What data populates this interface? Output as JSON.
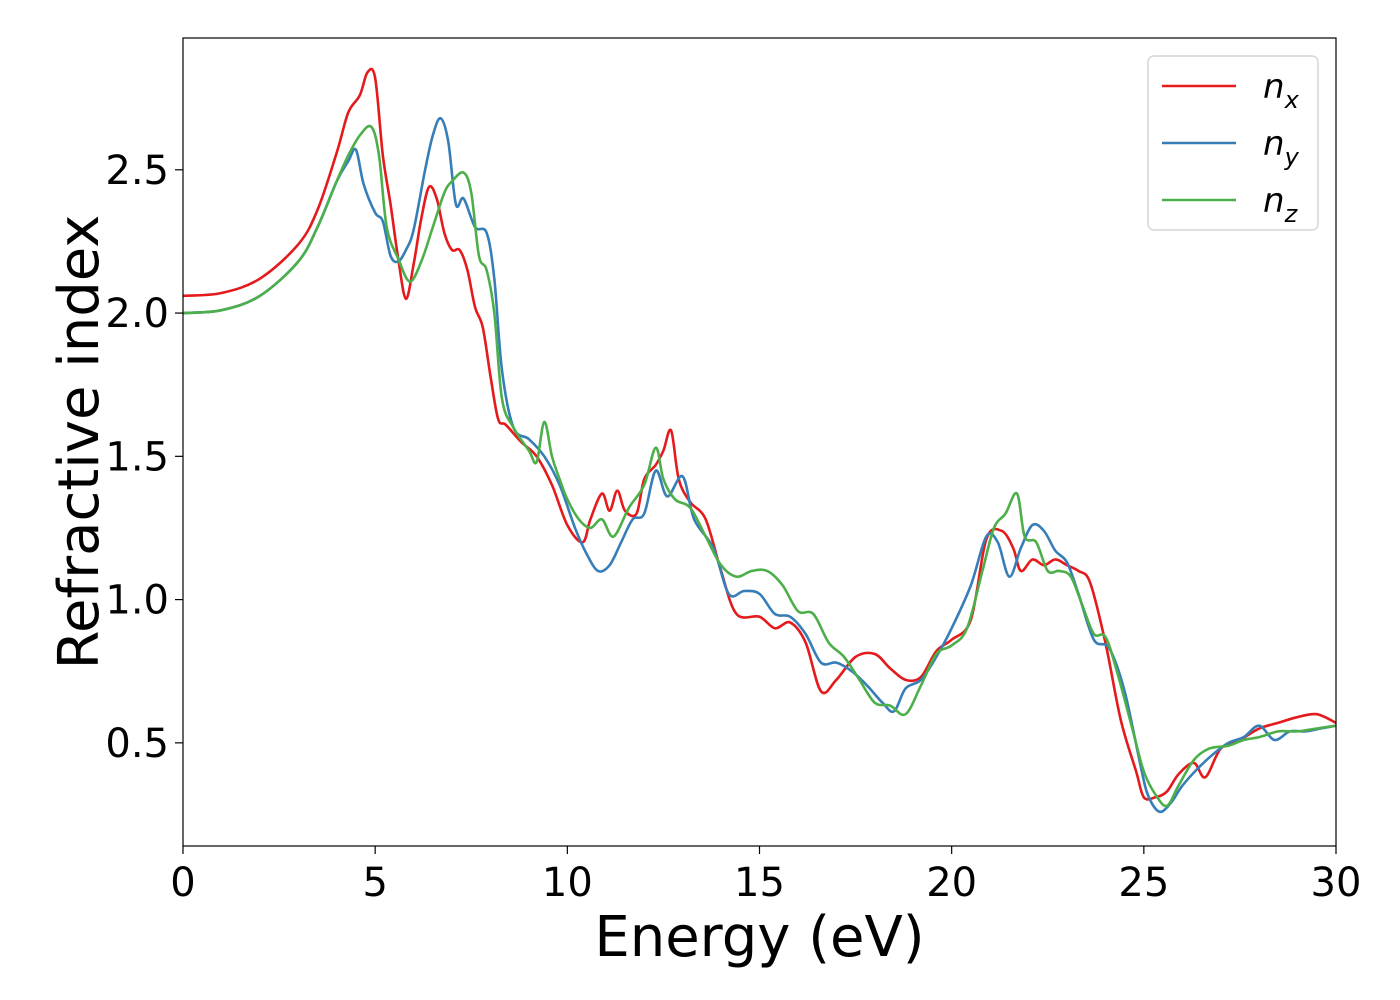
{
  "chart_data": {
    "type": "line",
    "title": "",
    "xlabel": "Energy (eV)",
    "ylabel": "Refractive index",
    "xlim": [
      0,
      30
    ],
    "ylim": [
      0.14,
      2.96
    ],
    "xticks": [
      0,
      5,
      10,
      15,
      20,
      25,
      30
    ],
    "yticks": [
      0.5,
      1.0,
      1.5,
      2.0,
      2.5
    ],
    "grid": false,
    "legend_position": "top-right",
    "series": [
      {
        "name": "n",
        "subscript": "x",
        "color": "#e41a1c",
        "x": [
          0,
          1,
          2,
          3,
          3.5,
          4,
          4.3,
          4.6,
          4.8,
          5.0,
          5.2,
          5.4,
          5.6,
          5.8,
          6.0,
          6.2,
          6.4,
          6.6,
          6.8,
          7.0,
          7.2,
          7.4,
          7.6,
          7.8,
          8.0,
          8.2,
          8.4,
          8.8,
          9.2,
          9.6,
          10.0,
          10.4,
          10.6,
          10.9,
          11.1,
          11.3,
          11.5,
          11.8,
          12.0,
          12.3,
          12.5,
          12.7,
          12.9,
          13.2,
          13.6,
          14.0,
          14.4,
          15.0,
          15.4,
          15.8,
          16.2,
          16.6,
          17.0,
          17.5,
          18.0,
          18.4,
          18.8,
          19.2,
          19.6,
          20.0,
          20.5,
          20.9,
          21.3,
          21.6,
          21.8,
          22.1,
          22.4,
          22.7,
          23.0,
          23.3,
          23.6,
          24.0,
          24.4,
          24.8,
          25.0,
          25.3,
          25.6,
          25.9,
          26.3,
          26.6,
          27.0,
          27.5,
          28.0,
          28.5,
          29.0,
          29.5,
          30.0
        ],
        "values": [
          2.06,
          2.07,
          2.12,
          2.24,
          2.36,
          2.56,
          2.7,
          2.76,
          2.84,
          2.82,
          2.55,
          2.38,
          2.19,
          2.05,
          2.17,
          2.33,
          2.44,
          2.4,
          2.28,
          2.22,
          2.22,
          2.15,
          2.02,
          1.95,
          1.78,
          1.63,
          1.61,
          1.55,
          1.5,
          1.4,
          1.26,
          1.2,
          1.28,
          1.37,
          1.31,
          1.38,
          1.31,
          1.3,
          1.42,
          1.47,
          1.52,
          1.59,
          1.42,
          1.34,
          1.28,
          1.1,
          0.95,
          0.94,
          0.9,
          0.92,
          0.85,
          0.68,
          0.72,
          0.8,
          0.81,
          0.76,
          0.72,
          0.73,
          0.82,
          0.86,
          0.93,
          1.21,
          1.24,
          1.18,
          1.1,
          1.14,
          1.12,
          1.14,
          1.12,
          1.1,
          1.06,
          0.85,
          0.58,
          0.4,
          0.31,
          0.31,
          0.33,
          0.39,
          0.43,
          0.38,
          0.48,
          0.51,
          0.55,
          0.57,
          0.59,
          0.6,
          0.57
        ]
      },
      {
        "name": "n",
        "subscript": "y",
        "color": "#377eb8",
        "x": [
          0,
          1,
          2,
          3,
          3.5,
          4,
          4.3,
          4.5,
          4.7,
          5.0,
          5.2,
          5.4,
          5.6,
          5.8,
          6.0,
          6.3,
          6.5,
          6.7,
          6.9,
          7.1,
          7.3,
          7.6,
          7.9,
          8.1,
          8.3,
          8.6,
          9.0,
          9.4,
          9.8,
          10.2,
          10.5,
          10.8,
          11.1,
          11.4,
          11.7,
          12.0,
          12.3,
          12.6,
          13.0,
          13.3,
          13.8,
          14.2,
          14.6,
          15.0,
          15.4,
          15.8,
          16.2,
          16.6,
          17.0,
          17.4,
          17.8,
          18.2,
          18.5,
          18.8,
          19.2,
          19.6,
          20.0,
          20.5,
          20.9,
          21.2,
          21.5,
          21.8,
          22.1,
          22.4,
          22.7,
          23.0,
          23.3,
          23.7,
          24.1,
          24.5,
          24.9,
          25.1,
          25.4,
          25.7,
          26.0,
          26.4,
          26.8,
          27.2,
          27.6,
          28.0,
          28.4,
          28.8,
          29.2,
          29.6,
          30.0
        ],
        "values": [
          2.0,
          2.01,
          2.06,
          2.18,
          2.3,
          2.46,
          2.53,
          2.57,
          2.45,
          2.35,
          2.32,
          2.2,
          2.18,
          2.22,
          2.29,
          2.5,
          2.62,
          2.68,
          2.6,
          2.38,
          2.4,
          2.3,
          2.28,
          2.12,
          1.8,
          1.6,
          1.56,
          1.5,
          1.4,
          1.25,
          1.16,
          1.1,
          1.12,
          1.2,
          1.28,
          1.3,
          1.45,
          1.36,
          1.43,
          1.28,
          1.18,
          1.02,
          1.03,
          1.02,
          0.95,
          0.94,
          0.88,
          0.78,
          0.78,
          0.75,
          0.7,
          0.64,
          0.61,
          0.69,
          0.72,
          0.8,
          0.9,
          1.05,
          1.22,
          1.2,
          1.08,
          1.18,
          1.26,
          1.24,
          1.17,
          1.13,
          1.02,
          0.86,
          0.83,
          0.68,
          0.43,
          0.32,
          0.26,
          0.29,
          0.35,
          0.41,
          0.46,
          0.5,
          0.52,
          0.56,
          0.51,
          0.54,
          0.54,
          0.55,
          0.56
        ]
      },
      {
        "name": "n",
        "subscript": "z",
        "color": "#4daf4a",
        "x": [
          0,
          1,
          2,
          3,
          3.5,
          4,
          4.3,
          4.6,
          4.9,
          5.1,
          5.3,
          5.6,
          5.9,
          6.2,
          6.5,
          6.8,
          7.0,
          7.3,
          7.5,
          7.7,
          7.9,
          8.1,
          8.3,
          8.6,
          9.0,
          9.2,
          9.4,
          9.6,
          9.8,
          10.0,
          10.3,
          10.6,
          10.9,
          11.2,
          11.6,
          12.0,
          12.3,
          12.5,
          12.8,
          13.2,
          13.6,
          14.0,
          14.4,
          14.8,
          15.2,
          15.6,
          16.0,
          16.4,
          16.8,
          17.2,
          17.6,
          18.0,
          18.4,
          18.8,
          19.2,
          19.6,
          20.0,
          20.4,
          20.8,
          21.1,
          21.4,
          21.7,
          21.9,
          22.2,
          22.5,
          22.8,
          23.1,
          23.4,
          23.7,
          24.0,
          24.3,
          24.7,
          25.0,
          25.3,
          25.6,
          25.9,
          26.3,
          26.7,
          27.2,
          27.6,
          28.0,
          28.5,
          29.0,
          29.5,
          30.0
        ],
        "values": [
          2.0,
          2.01,
          2.06,
          2.18,
          2.3,
          2.46,
          2.55,
          2.62,
          2.65,
          2.55,
          2.3,
          2.19,
          2.11,
          2.18,
          2.3,
          2.42,
          2.46,
          2.49,
          2.42,
          2.2,
          2.15,
          2.0,
          1.7,
          1.6,
          1.52,
          1.48,
          1.62,
          1.5,
          1.42,
          1.35,
          1.28,
          1.25,
          1.28,
          1.22,
          1.32,
          1.4,
          1.53,
          1.42,
          1.35,
          1.32,
          1.22,
          1.12,
          1.08,
          1.1,
          1.1,
          1.05,
          0.96,
          0.95,
          0.85,
          0.8,
          0.72,
          0.64,
          0.63,
          0.6,
          0.7,
          0.81,
          0.84,
          0.9,
          1.1,
          1.25,
          1.3,
          1.37,
          1.22,
          1.2,
          1.1,
          1.1,
          1.08,
          0.98,
          0.88,
          0.87,
          0.75,
          0.55,
          0.4,
          0.32,
          0.28,
          0.35,
          0.44,
          0.48,
          0.49,
          0.51,
          0.52,
          0.54,
          0.54,
          0.55,
          0.56
        ]
      }
    ]
  }
}
